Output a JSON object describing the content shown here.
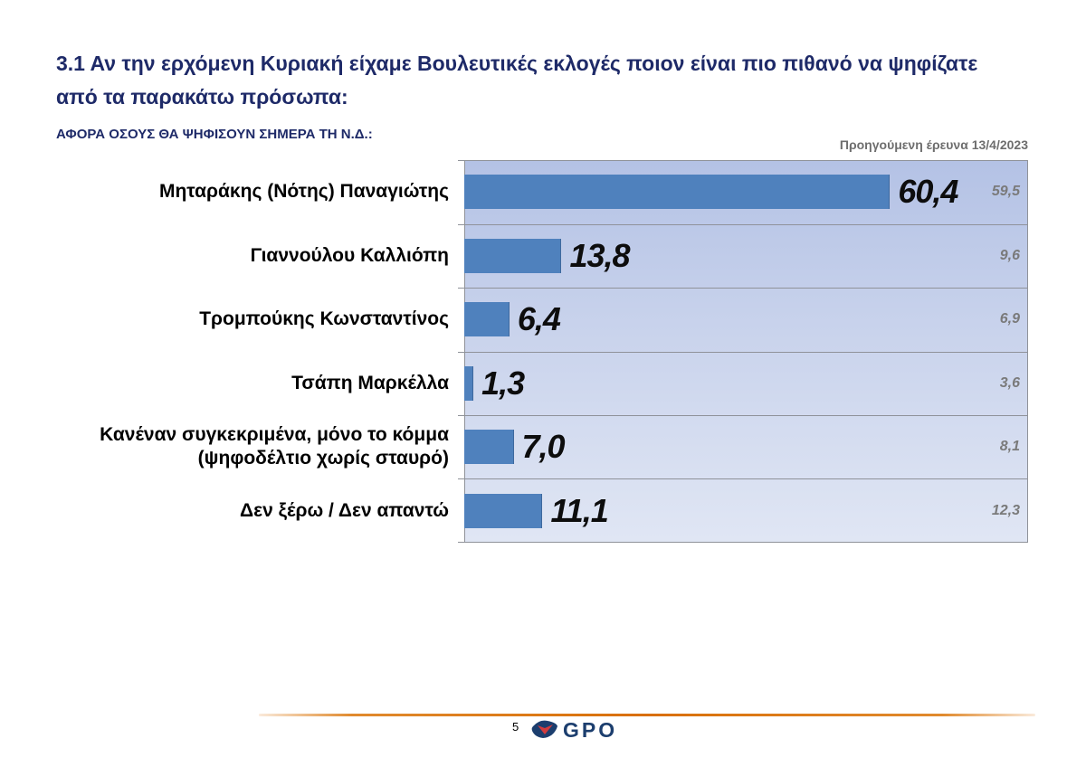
{
  "page": {
    "title": "3.1 Αν την ερχόμενη Κυριακή είχαμε Βουλευτικές εκλογές ποιον είναι πιο πιθανό να ψηφίζατε από τα παρακάτω πρόσωπα:",
    "scope_note": "ΑΦΟΡΑ ΟΣΟΥΣ ΘΑ ΨΗΦΙΣΟΥΝ ΣΗΜΕΡΑ ΤΗ Ν.Δ.:",
    "previous_survey_label": "Προηγούμενη έρευνα 13/4/2023",
    "page_number": "5",
    "logo_text": "GPO"
  },
  "colors": {
    "title_navy": "#1e2a68",
    "bar_blue": "#4f81bd",
    "plot_bg_top": "#b4c2e5",
    "plot_bg_bottom": "#e0e6f4",
    "value_black": "#0d0d0d",
    "previous_gray": "#7a7a7a",
    "divider_orange": "#d96f08",
    "logo_navy": "#1c3e6e",
    "logo_red": "#d13b3e"
  },
  "chart_data": {
    "type": "bar",
    "orientation": "horizontal",
    "title": "",
    "xlabel": "",
    "ylabel": "",
    "xlim": [
      0,
      80
    ],
    "grid": true,
    "legend_position": "none",
    "categories": [
      "Μηταράκης (Νότης) Παναγιώτης",
      "Γιαννούλου Καλλιόπη",
      "Τρομπούκης Κωνσταντίνος",
      "Τσάπη Μαρκέλλα",
      "Κανέναν συγκεκριμένα, μόνο το κόμμα (ψηφοδέλτιο χωρίς σταυρό)",
      "Δεν ξέρω / Δεν απαντώ"
    ],
    "series": [
      {
        "name": "current",
        "values": [
          60.4,
          13.8,
          6.4,
          1.3,
          7.0,
          11.1
        ]
      },
      {
        "name": "Προηγούμενη έρευνα 13/4/2023",
        "values": [
          59.5,
          9.6,
          6.9,
          3.6,
          8.1,
          12.3
        ]
      }
    ],
    "value_labels": [
      "60,4",
      "13,8",
      "6,4",
      "1,3",
      "7,0",
      "11,1"
    ],
    "previous_value_labels": [
      "59,5",
      "9,6",
      "6,9",
      "3,6",
      "8,1",
      "12,3"
    ]
  }
}
